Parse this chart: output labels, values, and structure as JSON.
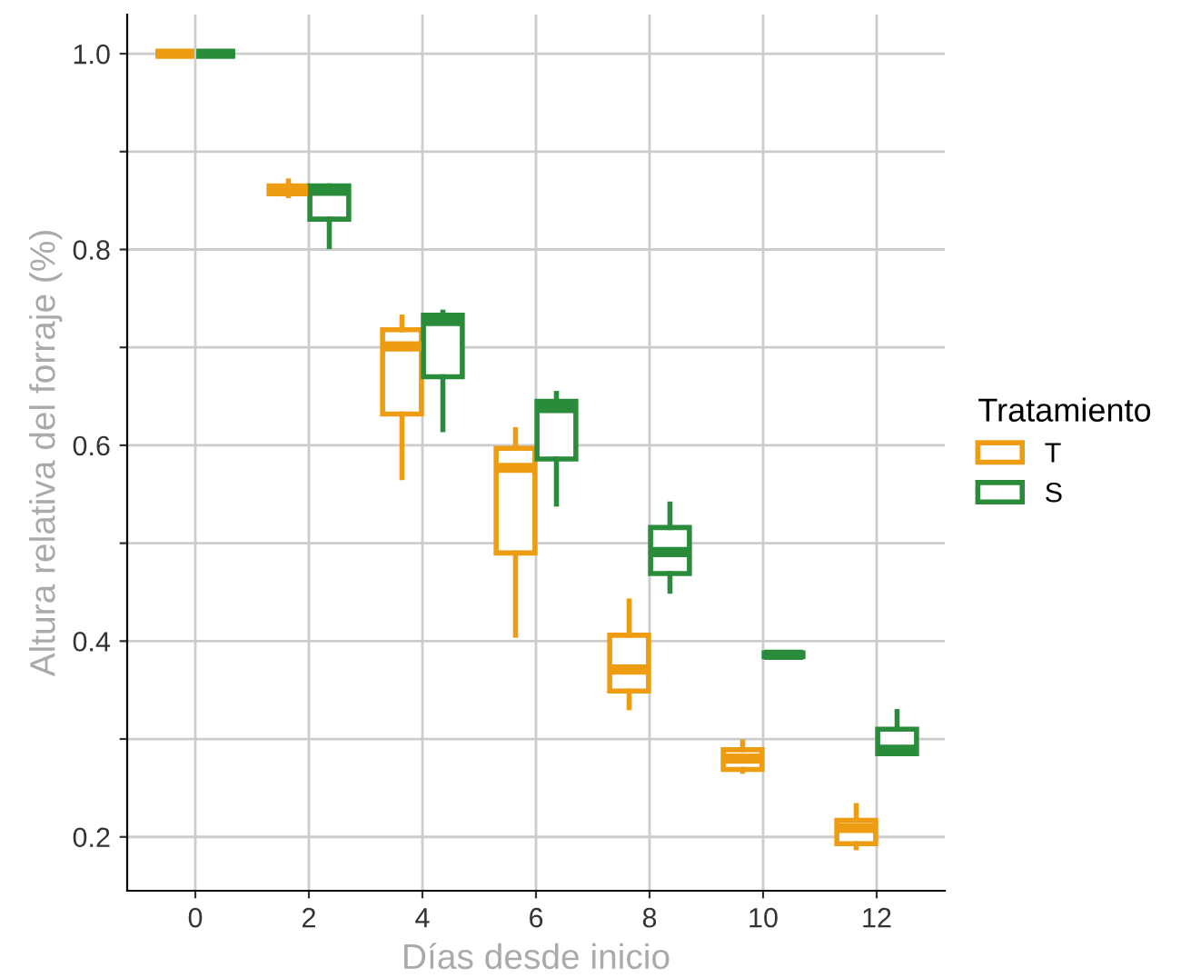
{
  "chart_data": {
    "type": "box",
    "xlabel": "Días desde inicio",
    "ylabel": "Altura relativa del forraje (%)",
    "legend_title": "Tratamiento",
    "categories": [
      "0",
      "2",
      "4",
      "6",
      "8",
      "10",
      "12"
    ],
    "ylim": [
      0.145,
      1.04
    ],
    "yticks": [
      {
        "value": 0.2,
        "label": "0.2"
      },
      {
        "value": 0.3,
        "label": null
      },
      {
        "value": 0.4,
        "label": "0.4"
      },
      {
        "value": 0.5,
        "label": null
      },
      {
        "value": 0.6,
        "label": "0.6"
      },
      {
        "value": 0.7,
        "label": null
      },
      {
        "value": 0.8,
        "label": "0.8"
      },
      {
        "value": 0.9,
        "label": null
      },
      {
        "value": 1.0,
        "label": "1.0"
      }
    ],
    "grid": true,
    "legend": "right",
    "series": [
      {
        "name": "T",
        "color": "#ee9c11",
        "boxes": [
          {
            "low": 1.0,
            "q1": 1.0,
            "median": 1.0,
            "q3": 1.0,
            "high": 1.0
          },
          {
            "low": 0.855,
            "q1": 0.857,
            "median": 0.86,
            "q3": 0.865,
            "high": 0.87
          },
          {
            "low": 0.567,
            "q1": 0.632,
            "median": 0.701,
            "q3": 0.718,
            "high": 0.731
          },
          {
            "low": 0.406,
            "q1": 0.49,
            "median": 0.577,
            "q3": 0.597,
            "high": 0.616
          },
          {
            "low": 0.332,
            "q1": 0.349,
            "median": 0.371,
            "q3": 0.406,
            "high": 0.441
          },
          {
            "low": 0.267,
            "q1": 0.269,
            "median": 0.28,
            "q3": 0.289,
            "high": 0.297
          },
          {
            "low": 0.189,
            "q1": 0.193,
            "median": 0.209,
            "q3": 0.217,
            "high": 0.232
          }
        ]
      },
      {
        "name": "S",
        "color": "#2a8c3a",
        "boxes": [
          {
            "low": 1.0,
            "q1": 1.0,
            "median": 1.0,
            "q3": 1.0,
            "high": 1.0
          },
          {
            "low": 0.803,
            "q1": 0.831,
            "median": 0.86,
            "q3": 0.865,
            "high": 0.865
          },
          {
            "low": 0.616,
            "q1": 0.67,
            "median": 0.727,
            "q3": 0.733,
            "high": 0.736
          },
          {
            "low": 0.54,
            "q1": 0.586,
            "median": 0.638,
            "q3": 0.645,
            "high": 0.653
          },
          {
            "low": 0.451,
            "q1": 0.469,
            "median": 0.491,
            "q3": 0.516,
            "high": 0.54
          },
          {
            "low": 0.384,
            "q1": 0.384,
            "median": 0.386,
            "q3": 0.388,
            "high": 0.388
          },
          {
            "low": 0.285,
            "q1": 0.285,
            "median": 0.289,
            "q3": 0.31,
            "high": 0.328
          }
        ]
      }
    ]
  }
}
